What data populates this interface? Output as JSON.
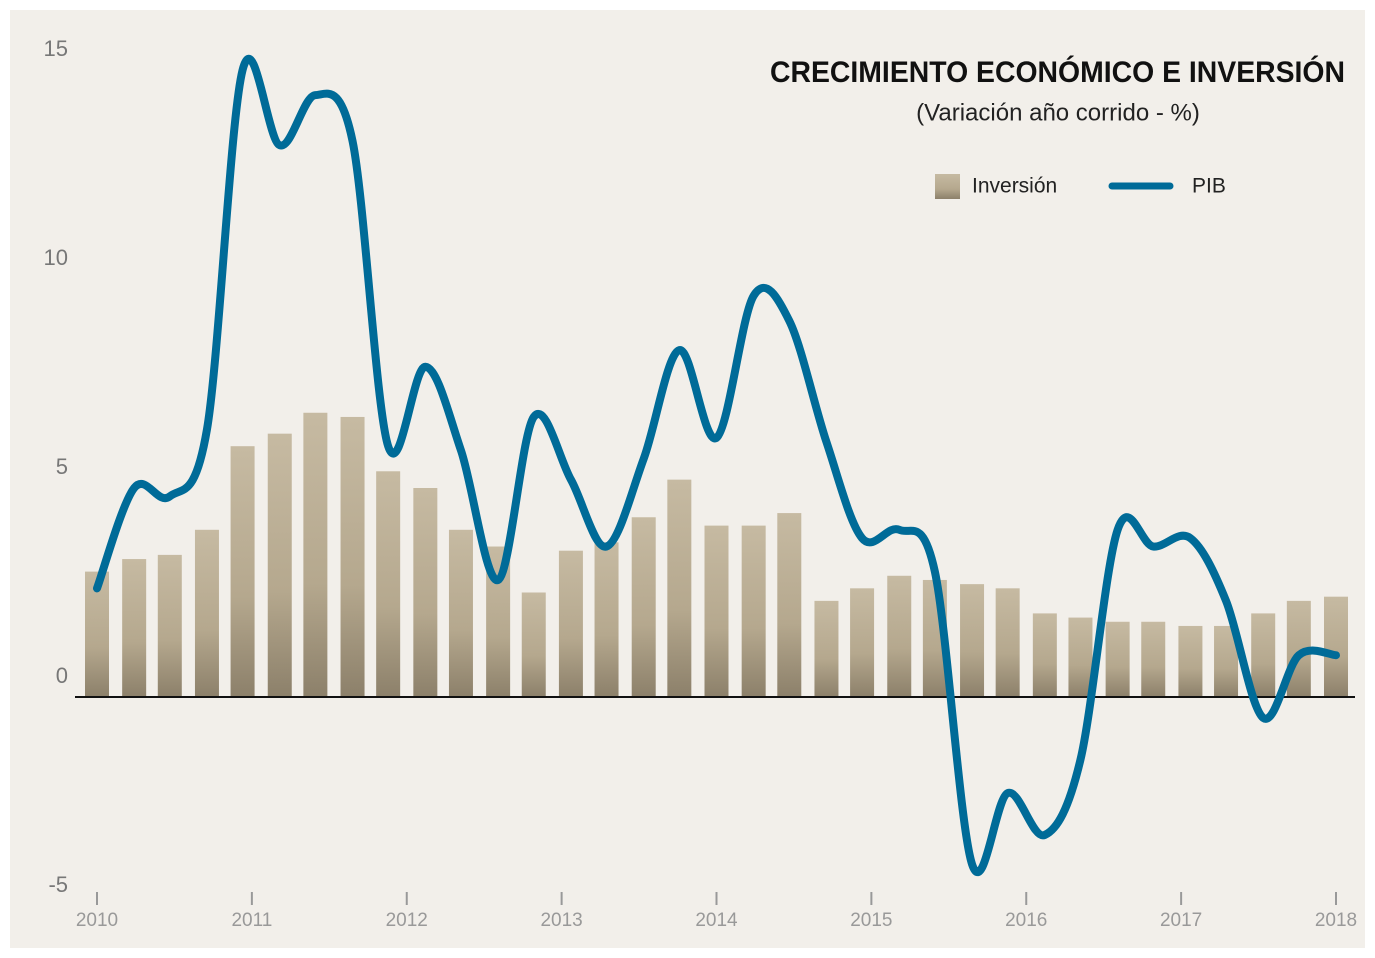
{
  "chart_data": {
    "type": "combo",
    "title": "CRECIMIENTO ECONÓMICO E INVERSIÓN",
    "subtitle": "(Variación año corrido - %)",
    "x": [
      2010,
      2010.24,
      2010.47,
      2010.71,
      2010.94,
      2011.18,
      2011.41,
      2011.65,
      2011.88,
      2012.12,
      2012.35,
      2012.59,
      2012.82,
      2013.06,
      2013.29,
      2013.53,
      2013.76,
      2014,
      2014.24,
      2014.47,
      2014.71,
      2014.94,
      2015.18,
      2015.41,
      2015.65,
      2015.88,
      2016.12,
      2016.35,
      2016.59,
      2016.82,
      2017.06,
      2017.29,
      2017.53,
      2017.76,
      2018
    ],
    "series": [
      {
        "name": "Inversión",
        "type": "bar",
        "color": "#b8ab92",
        "values": [
          3.0,
          3.3,
          3.4,
          4.0,
          6.0,
          6.3,
          6.8,
          6.7,
          5.4,
          5.0,
          4.0,
          3.6,
          2.5,
          3.5,
          3.7,
          4.3,
          5.2,
          4.1,
          4.1,
          4.4,
          2.3,
          2.6,
          2.9,
          2.8,
          2.7,
          2.6,
          2.0,
          1.9,
          1.8,
          1.8,
          1.7,
          1.7,
          2.0,
          2.3,
          2.4
        ]
      },
      {
        "name": "PIB",
        "type": "line",
        "color": "#006b98",
        "values": [
          2.6,
          5.0,
          4.8,
          6.4,
          15.0,
          13.2,
          14.4,
          13.3,
          6.0,
          7.9,
          5.9,
          2.8,
          6.7,
          5.2,
          3.6,
          5.7,
          8.3,
          6.2,
          9.6,
          9.0,
          6.1,
          3.8,
          4.0,
          3.0,
          -4.0,
          -2.3,
          -3.3,
          -1.5,
          4.0,
          3.6,
          3.8,
          2.3,
          -0.5,
          1.0,
          1.0
        ]
      }
    ],
    "xlim": [
      2010,
      2018
    ],
    "xticks": [
      2010,
      2011,
      2012,
      2013,
      2014,
      2015,
      2016,
      2017,
      2018
    ],
    "ylim": [
      -5,
      15
    ],
    "yticks": [
      -5,
      0,
      5,
      10,
      15
    ],
    "legend": "top-right"
  }
}
